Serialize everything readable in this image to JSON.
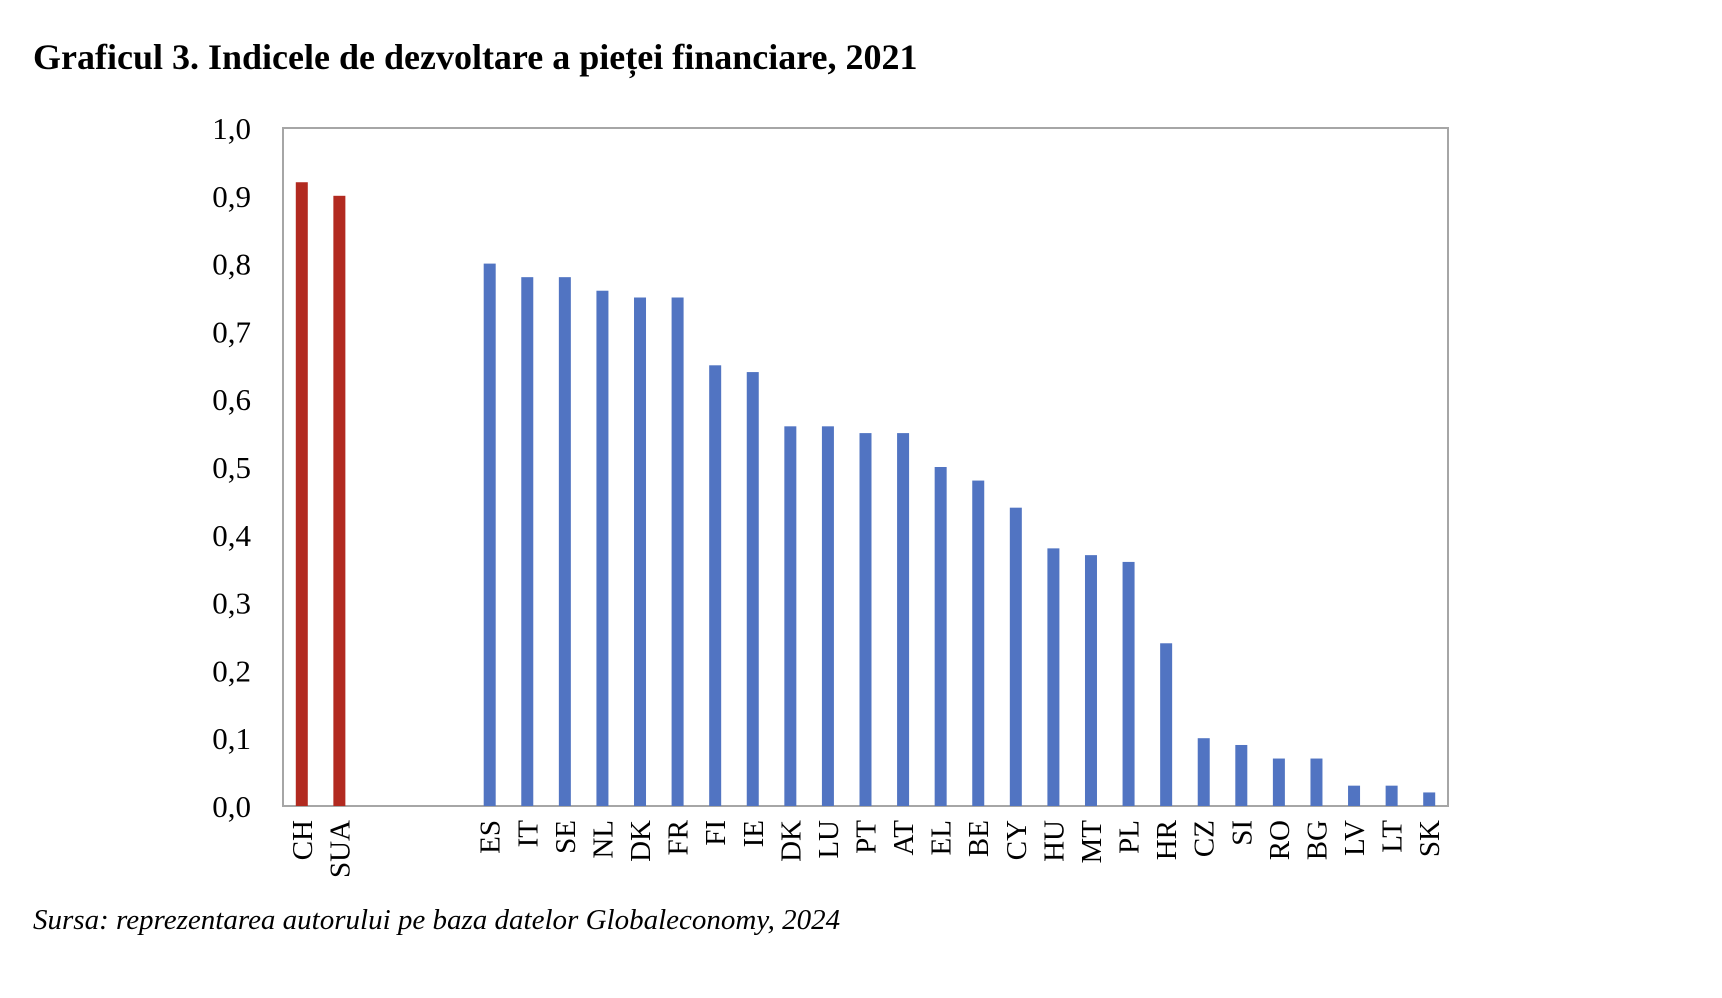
{
  "title": "Graficul 3. Indicele de dezvoltare a pieței financiare, 2021",
  "source": "Sursa: reprezentarea autorului pe baza datelor Globaleconomy, 2024",
  "colors": {
    "highlight": "#B22A20",
    "eu": "#5174C2",
    "frame": "#A6A6A6"
  },
  "chart_data": {
    "type": "bar",
    "title": "Graficul 3. Indicele de dezvoltare a pieței financiare, 2021",
    "xlabel": "",
    "ylabel": "",
    "ylim": [
      0,
      1
    ],
    "yticks": [
      "0,0",
      "0,1",
      "0,2",
      "0,3",
      "0,4",
      "0,5",
      "0,6",
      "0,7",
      "0,8",
      "0,9",
      "1,0"
    ],
    "grid": false,
    "legend": "none",
    "categories": [
      "CH",
      "SUA",
      "",
      "",
      "",
      "ES",
      "IT",
      "SE",
      "NL",
      "DK",
      "FR",
      "FI",
      "IE",
      "DK",
      "LU",
      "PT",
      "AT",
      "EL",
      "BE",
      "CY",
      "HU",
      "MT",
      "PL",
      "HR",
      "CZ",
      "SI",
      "RO",
      "BG",
      "LV",
      "LT",
      "SK"
    ],
    "values": [
      0.92,
      0.9,
      null,
      null,
      null,
      0.8,
      0.78,
      0.78,
      0.76,
      0.75,
      0.75,
      0.65,
      0.64,
      0.56,
      0.56,
      0.55,
      0.55,
      0.5,
      0.48,
      0.44,
      0.38,
      0.37,
      0.36,
      0.24,
      0.1,
      0.09,
      0.07,
      0.07,
      0.03,
      0.03,
      0.02
    ],
    "bar_colors": [
      "highlight",
      "highlight",
      "",
      "",
      "",
      "eu",
      "eu",
      "eu",
      "eu",
      "eu",
      "eu",
      "eu",
      "eu",
      "eu",
      "eu",
      "eu",
      "eu",
      "eu",
      "eu",
      "eu",
      "eu",
      "eu",
      "eu",
      "eu",
      "eu",
      "eu",
      "eu",
      "eu",
      "eu",
      "eu",
      "eu"
    ]
  }
}
